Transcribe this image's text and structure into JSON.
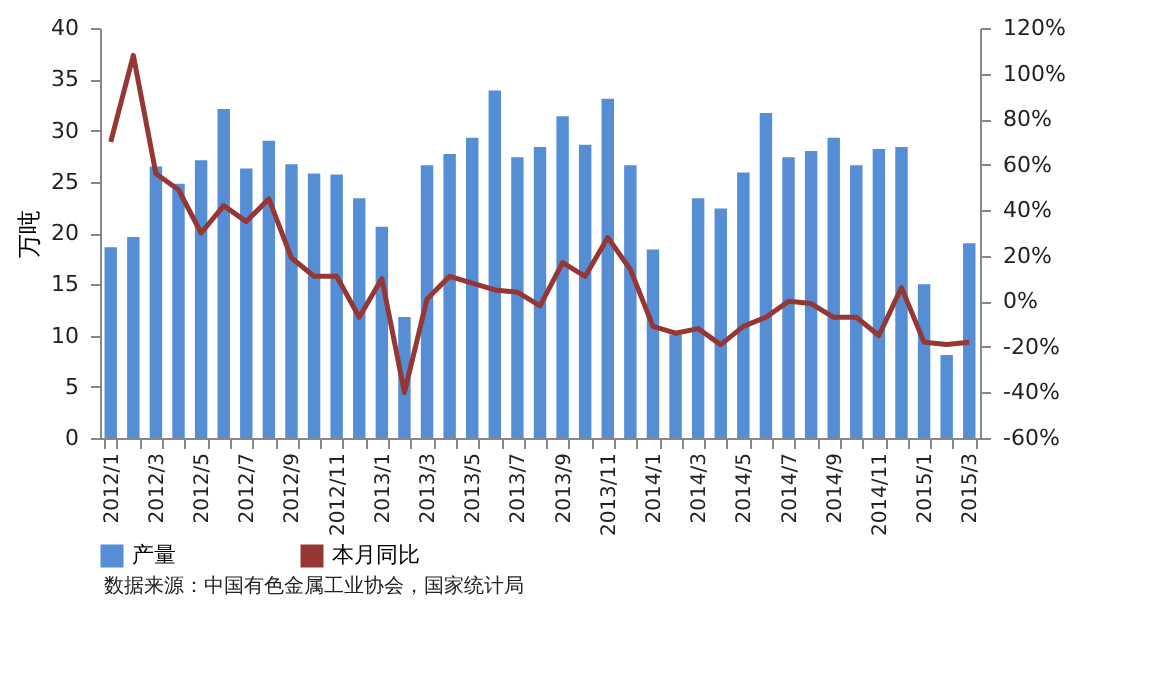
{
  "chart_data": {
    "type": "bar",
    "categories": [
      "2012/1",
      null,
      "2012/3",
      null,
      "2012/5",
      null,
      "2012/7",
      null,
      "2012/9",
      null,
      "2012/11",
      null,
      "2013/1",
      null,
      "2013/3",
      null,
      "2013/5",
      null,
      "2013/7",
      null,
      "2013/9",
      null,
      "2013/11",
      null,
      "2014/1",
      null,
      "2014/3",
      null,
      "2014/5",
      null,
      "2014/7",
      null,
      "2014/9",
      null,
      "2014/11",
      null,
      "2015/1",
      null,
      "2015/3"
    ],
    "series": [
      {
        "name": "产量",
        "color": "#558ed5",
        "values": [
          18.6,
          19.6,
          26.5,
          24.8,
          27.1,
          32.1,
          26.3,
          29.0,
          26.7,
          25.8,
          25.7,
          23.4,
          20.6,
          11.8,
          26.6,
          27.7,
          29.3,
          33.9,
          27.4,
          28.4,
          31.4,
          28.6,
          33.1,
          26.6,
          18.4,
          10.1,
          23.4,
          22.4,
          25.9,
          31.7,
          27.4,
          28.0,
          29.3,
          26.6,
          28.2,
          28.4,
          15.0,
          8.1,
          19.0
        ]
      },
      {
        "name": "本月同比",
        "type": "line",
        "axis": "y2",
        "color": "#953735",
        "values": [
          70,
          108,
          56,
          49,
          30,
          42,
          35,
          45,
          19,
          11,
          11,
          -7,
          10,
          -40,
          1,
          11,
          8,
          5,
          4,
          -2,
          17,
          11,
          28,
          14,
          -11,
          -14,
          -12,
          -19,
          -11,
          -7,
          0,
          -1,
          -7,
          -7,
          -15,
          6,
          -18,
          -19,
          -18
        ]
      }
    ],
    "ylabel": "万吨",
    "ylim": [
      0,
      40
    ],
    "yticks": [
      0,
      5,
      10,
      15,
      20,
      25,
      30,
      35,
      40
    ],
    "y2lim": [
      -60,
      120
    ],
    "y2ticks": [
      {
        "value": -60,
        "label": "-60%"
      },
      {
        "value": -40,
        "label": "-40%"
      },
      {
        "value": -20,
        "label": "-20%"
      },
      {
        "value": 0,
        "label": "0%"
      },
      {
        "value": 20,
        "label": "20%"
      },
      {
        "value": 40,
        "label": "40%"
      },
      {
        "value": 60,
        "label": "60%"
      },
      {
        "value": 80,
        "label": "80%"
      },
      {
        "value": 100,
        "label": "100%"
      },
      {
        "value": 120,
        "label": "120%"
      }
    ],
    "legend": "bottom",
    "annotations": [
      "数据来源：中国有色金属工业协会，国家统计局"
    ]
  }
}
